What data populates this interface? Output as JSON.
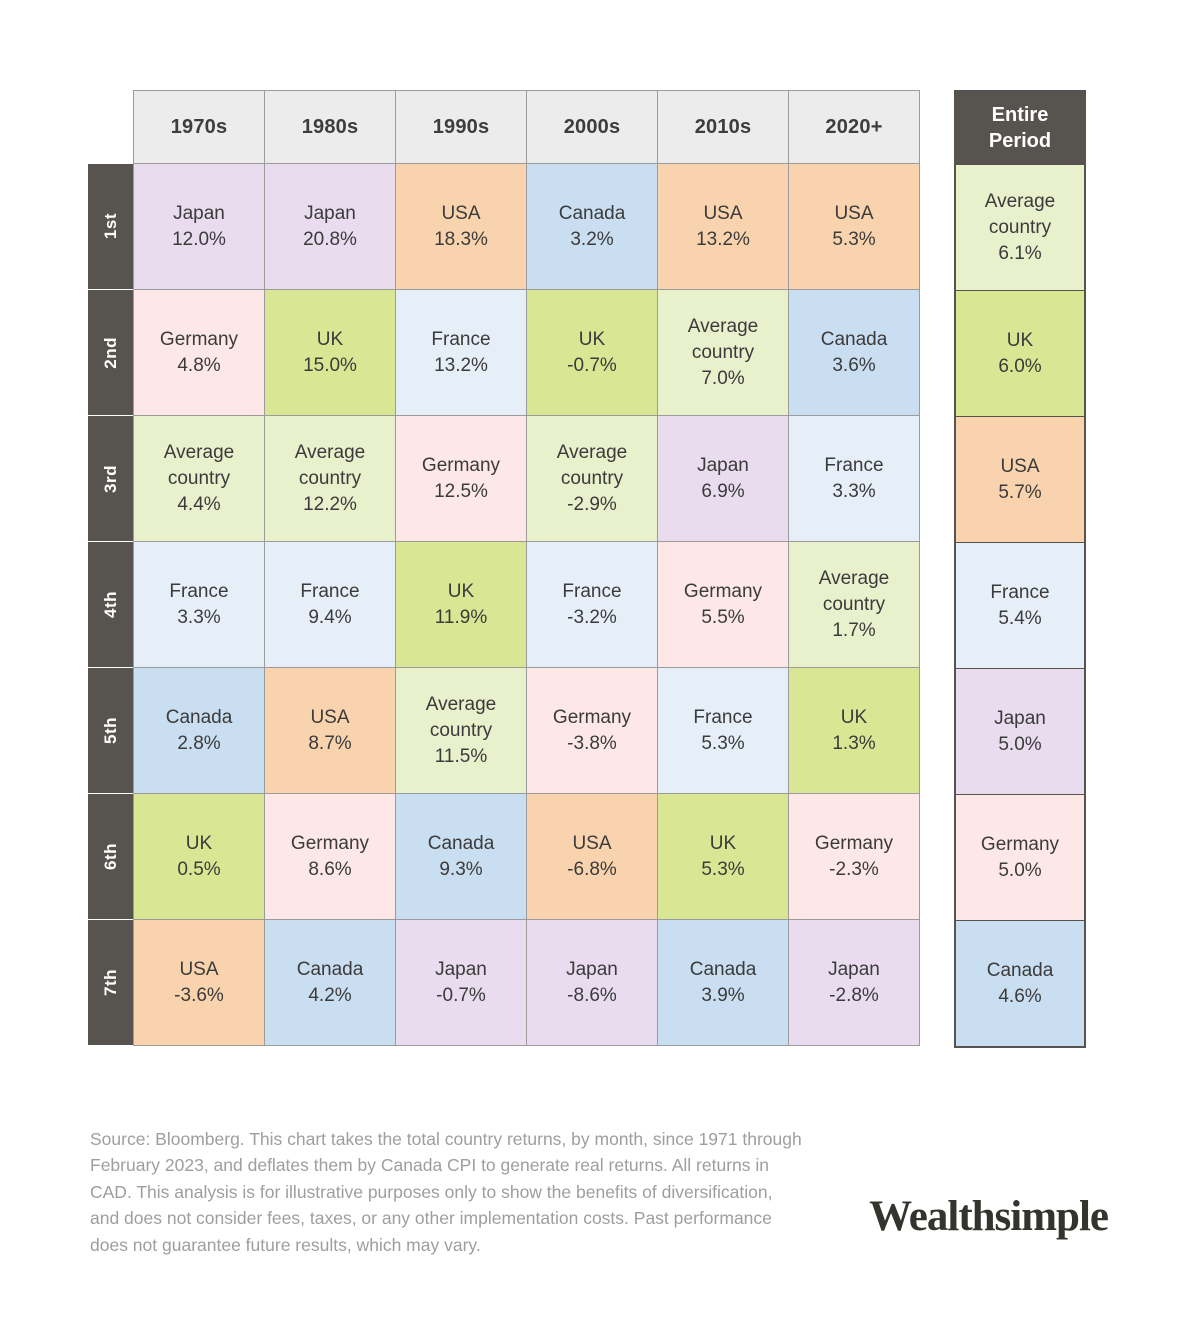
{
  "colors": {
    "countries": {
      "japan": "#e9dcef",
      "usa": "#f9d3ae",
      "canada": "#c9def0",
      "france": "#e6eef8",
      "germany": "#fde8e7",
      "uk": "#d9e795",
      "average": "#e9f0cc"
    },
    "header_bg": "#ececec",
    "rank_bg": "#57534f",
    "grid_line": "#9b9b9b",
    "entire_border": "#56524e"
  },
  "grid": {
    "headers": [
      "1970s",
      "1980s",
      "1990s",
      "2000s",
      "2010s",
      "2020+"
    ],
    "ranks": [
      "1st",
      "2nd",
      "3rd",
      "4th",
      "5th",
      "6th",
      "7th"
    ],
    "entire_header": "Entire Period",
    "cols": [
      [
        {
          "name": "Japan",
          "pct": "12.0%",
          "c": "japan"
        },
        {
          "name": "Germany",
          "pct": "4.8%",
          "c": "germany"
        },
        {
          "name": "Average country",
          "pct": "4.4%",
          "c": "average"
        },
        {
          "name": "France",
          "pct": "3.3%",
          "c": "france"
        },
        {
          "name": "Canada",
          "pct": "2.8%",
          "c": "canada"
        },
        {
          "name": "UK",
          "pct": "0.5%",
          "c": "uk"
        },
        {
          "name": "USA",
          "pct": "-3.6%",
          "c": "usa"
        }
      ],
      [
        {
          "name": "Japan",
          "pct": "20.8%",
          "c": "japan"
        },
        {
          "name": "UK",
          "pct": "15.0%",
          "c": "uk"
        },
        {
          "name": "Average country",
          "pct": "12.2%",
          "c": "average"
        },
        {
          "name": "France",
          "pct": "9.4%",
          "c": "france"
        },
        {
          "name": "USA",
          "pct": "8.7%",
          "c": "usa"
        },
        {
          "name": "Germany",
          "pct": "8.6%",
          "c": "germany"
        },
        {
          "name": "Canada",
          "pct": "4.2%",
          "c": "canada"
        }
      ],
      [
        {
          "name": "USA",
          "pct": "18.3%",
          "c": "usa"
        },
        {
          "name": "France",
          "pct": "13.2%",
          "c": "france"
        },
        {
          "name": "Germany",
          "pct": "12.5%",
          "c": "germany"
        },
        {
          "name": "UK",
          "pct": "11.9%",
          "c": "uk"
        },
        {
          "name": "Average country",
          "pct": "11.5%",
          "c": "average"
        },
        {
          "name": "Canada",
          "pct": "9.3%",
          "c": "canada"
        },
        {
          "name": "Japan",
          "pct": "-0.7%",
          "c": "japan"
        }
      ],
      [
        {
          "name": "Canada",
          "pct": "3.2%",
          "c": "canada"
        },
        {
          "name": "UK",
          "pct": "-0.7%",
          "c": "uk"
        },
        {
          "name": "Average country",
          "pct": "-2.9%",
          "c": "average"
        },
        {
          "name": "France",
          "pct": "-3.2%",
          "c": "france"
        },
        {
          "name": "Germany",
          "pct": "-3.8%",
          "c": "germany"
        },
        {
          "name": "USA",
          "pct": "-6.8%",
          "c": "usa"
        },
        {
          "name": "Japan",
          "pct": "-8.6%",
          "c": "japan"
        }
      ],
      [
        {
          "name": "USA",
          "pct": "13.2%",
          "c": "usa"
        },
        {
          "name": "Average country",
          "pct": "7.0%",
          "c": "average"
        },
        {
          "name": "Japan",
          "pct": "6.9%",
          "c": "japan"
        },
        {
          "name": "Germany",
          "pct": "5.5%",
          "c": "germany"
        },
        {
          "name": "France",
          "pct": "5.3%",
          "c": "france"
        },
        {
          "name": "UK",
          "pct": "5.3%",
          "c": "uk"
        },
        {
          "name": "Canada",
          "pct": "3.9%",
          "c": "canada"
        }
      ],
      [
        {
          "name": "USA",
          "pct": "5.3%",
          "c": "usa"
        },
        {
          "name": "Canada",
          "pct": "3.6%",
          "c": "canada"
        },
        {
          "name": "France",
          "pct": "3.3%",
          "c": "france"
        },
        {
          "name": "Average country",
          "pct": "1.7%",
          "c": "average"
        },
        {
          "name": "UK",
          "pct": "1.3%",
          "c": "uk"
        },
        {
          "name": "Germany",
          "pct": "-2.3%",
          "c": "germany"
        },
        {
          "name": "Japan",
          "pct": "-2.8%",
          "c": "japan"
        }
      ]
    ],
    "entire": [
      {
        "name": "Average country",
        "pct": "6.1%",
        "c": "average"
      },
      {
        "name": "UK",
        "pct": "6.0%",
        "c": "uk"
      },
      {
        "name": "USA",
        "pct": "5.7%",
        "c": "usa"
      },
      {
        "name": "France",
        "pct": "5.4%",
        "c": "france"
      },
      {
        "name": "Japan",
        "pct": "5.0%",
        "c": "japan"
      },
      {
        "name": "Germany",
        "pct": "5.0%",
        "c": "germany"
      },
      {
        "name": "Canada",
        "pct": "4.6%",
        "c": "canada"
      }
    ]
  },
  "chart_data": {
    "type": "table",
    "columns": [
      "1970s",
      "1980s",
      "1990s",
      "2000s",
      "2010s",
      "2020+",
      "Entire Period"
    ],
    "rows": [
      "1st",
      "2nd",
      "3rd",
      "4th",
      "5th",
      "6th",
      "7th"
    ],
    "unit": "% real annual return (CAD)",
    "cells": [
      [
        [
          "Japan",
          12.0
        ],
        [
          "Japan",
          20.8
        ],
        [
          "USA",
          18.3
        ],
        [
          "Canada",
          3.2
        ],
        [
          "USA",
          13.2
        ],
        [
          "USA",
          5.3
        ],
        [
          "Average country",
          6.1
        ]
      ],
      [
        [
          "Germany",
          4.8
        ],
        [
          "UK",
          15.0
        ],
        [
          "France",
          13.2
        ],
        [
          "UK",
          -0.7
        ],
        [
          "Average country",
          7.0
        ],
        [
          "Canada",
          3.6
        ],
        [
          "UK",
          6.0
        ]
      ],
      [
        [
          "Average country",
          4.4
        ],
        [
          "Average country",
          12.2
        ],
        [
          "Germany",
          12.5
        ],
        [
          "Average country",
          -2.9
        ],
        [
          "Japan",
          6.9
        ],
        [
          "France",
          3.3
        ],
        [
          "USA",
          5.7
        ]
      ],
      [
        [
          "France",
          3.3
        ],
        [
          "France",
          9.4
        ],
        [
          "UK",
          11.9
        ],
        [
          "France",
          -3.2
        ],
        [
          "Germany",
          5.5
        ],
        [
          "Average country",
          1.7
        ],
        [
          "France",
          5.4
        ]
      ],
      [
        [
          "Canada",
          2.8
        ],
        [
          "USA",
          8.7
        ],
        [
          "Average country",
          11.5
        ],
        [
          "Germany",
          -3.8
        ],
        [
          "France",
          5.3
        ],
        [
          "UK",
          1.3
        ],
        [
          "Japan",
          5.0
        ]
      ],
      [
        [
          "UK",
          0.5
        ],
        [
          "Germany",
          8.6
        ],
        [
          "Canada",
          9.3
        ],
        [
          "USA",
          -6.8
        ],
        [
          "UK",
          5.3
        ],
        [
          "Germany",
          -2.3
        ],
        [
          "Germany",
          5.0
        ]
      ],
      [
        [
          "USA",
          -3.6
        ],
        [
          "Canada",
          4.2
        ],
        [
          "Japan",
          -0.7
        ],
        [
          "Japan",
          -8.6
        ],
        [
          "Canada",
          3.9
        ],
        [
          "Japan",
          -2.8
        ],
        [
          "Canada",
          4.6
        ]
      ]
    ],
    "legend_position": "none",
    "grid": true
  },
  "footer": {
    "source_note": "Source: Bloomberg. This chart takes the total country returns, by month, since 1971 through February 2023, and deflates them by Canada CPI to generate real returns. All returns in CAD. This analysis is for illustrative purposes only to show the benefits of diversification, and does not consider fees, taxes, or any other implementation costs. Past performance does not guarantee future results, which may vary."
  },
  "logo": {
    "text": "Wealthsimple"
  }
}
